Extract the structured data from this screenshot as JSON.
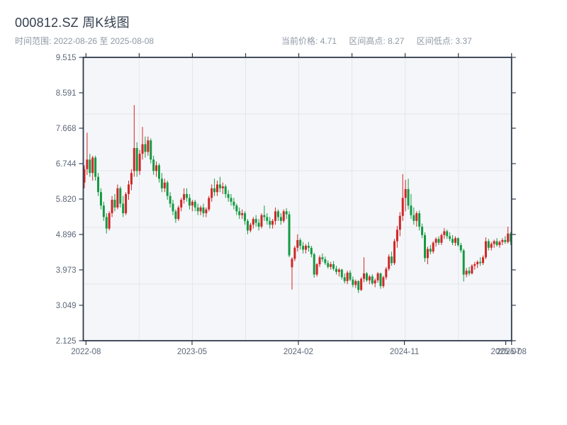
{
  "header": {
    "title": "000812.SZ 周K线图",
    "date_range_label": "时间范围: 2022-08-26 至 2025-08-08",
    "stats": [
      {
        "label": "当前价格:",
        "value": "4.71"
      },
      {
        "label": "区间高点:",
        "value": "8.27"
      },
      {
        "label": "区间低点:",
        "value": "3.37"
      }
    ]
  },
  "chart_data": {
    "type": "candlestick",
    "title": "000812.SZ 周K线图",
    "frequency": "weekly",
    "date_start": "2022-08-26",
    "date_end": "2025-08-08",
    "current_price": 4.71,
    "range_high": 8.27,
    "range_low": 3.37,
    "up_color": "#d02626",
    "down_color": "#149a43",
    "grid": true,
    "legend": false,
    "y_range": [
      2.125,
      9.515
    ],
    "y_tick_labels": [
      "9.515",
      "8.591",
      "7.668",
      "6.744",
      "5.820",
      "4.896",
      "3.973",
      "3.049",
      "2.125"
    ],
    "x_ticks": [
      {
        "label": "2022-08",
        "i": 0.6
      },
      {
        "label": "2023-05",
        "i": 38.9
      },
      {
        "label": "2024-02",
        "i": 77.3
      },
      {
        "label": "2024-11",
        "i": 115.6
      },
      {
        "label": "2025-07",
        "i": 152.2
      },
      {
        "label": "2025-08",
        "i": 154.3
      }
    ],
    "candle_count": 155,
    "ohlc_note": "weekly candles [open, high, low, close]; red = up, green = down",
    "candles": [
      [
        6.25,
        6.7,
        6.1,
        6.6
      ],
      [
        6.6,
        7.55,
        6.45,
        6.85
      ],
      [
        6.85,
        7.0,
        6.4,
        6.5
      ],
      [
        6.5,
        6.95,
        6.3,
        6.9
      ],
      [
        6.9,
        6.95,
        6.3,
        6.4
      ],
      [
        6.4,
        6.5,
        5.9,
        6.0
      ],
      [
        6.0,
        6.1,
        5.55,
        5.65
      ],
      [
        5.65,
        5.75,
        5.25,
        5.35
      ],
      [
        5.35,
        5.45,
        4.92,
        5.05
      ],
      [
        5.05,
        5.5,
        5.0,
        5.45
      ],
      [
        5.45,
        5.9,
        5.35,
        5.8
      ],
      [
        5.8,
        5.95,
        5.5,
        5.6
      ],
      [
        5.6,
        6.2,
        5.55,
        6.1
      ],
      [
        6.1,
        6.15,
        5.6,
        5.7
      ],
      [
        5.7,
        5.9,
        5.35,
        5.45
      ],
      [
        5.45,
        6.0,
        5.4,
        5.95
      ],
      [
        5.95,
        6.3,
        5.8,
        6.2
      ],
      [
        6.2,
        6.6,
        6.05,
        6.5
      ],
      [
        6.55,
        8.27,
        6.4,
        7.15
      ],
      [
        7.15,
        7.3,
        6.4,
        6.55
      ],
      [
        6.55,
        7.1,
        6.45,
        7.0
      ],
      [
        7.0,
        7.7,
        6.85,
        7.25
      ],
      [
        7.25,
        7.45,
        6.9,
        7.05
      ],
      [
        7.05,
        7.45,
        6.95,
        7.35
      ],
      [
        7.35,
        7.4,
        6.75,
        6.85
      ],
      [
        6.85,
        6.95,
        6.45,
        6.55
      ],
      [
        6.55,
        6.8,
        6.4,
        6.7
      ],
      [
        6.7,
        6.75,
        6.25,
        6.35
      ],
      [
        6.35,
        6.5,
        6.0,
        6.1
      ],
      [
        6.1,
        6.35,
        6.0,
        6.25
      ],
      [
        6.25,
        6.3,
        5.8,
        5.9
      ],
      [
        5.9,
        6.0,
        5.6,
        5.7
      ],
      [
        5.7,
        5.8,
        5.4,
        5.5
      ],
      [
        5.5,
        5.55,
        5.2,
        5.3
      ],
      [
        5.3,
        5.65,
        5.25,
        5.6
      ],
      [
        5.6,
        5.85,
        5.5,
        5.8
      ],
      [
        5.8,
        6.1,
        5.7,
        5.95
      ],
      [
        5.95,
        6.1,
        5.75,
        5.85
      ],
      [
        5.85,
        5.95,
        5.55,
        5.65
      ],
      [
        5.65,
        5.8,
        5.5,
        5.75
      ],
      [
        5.75,
        5.8,
        5.5,
        5.6
      ],
      [
        5.6,
        5.7,
        5.4,
        5.5
      ],
      [
        5.5,
        5.65,
        5.4,
        5.6
      ],
      [
        5.6,
        5.7,
        5.35,
        5.45
      ],
      [
        5.45,
        5.6,
        5.35,
        5.55
      ],
      [
        5.55,
        5.9,
        5.5,
        5.85
      ],
      [
        5.85,
        6.2,
        5.75,
        6.1
      ],
      [
        6.1,
        6.35,
        5.9,
        6.0
      ],
      [
        6.0,
        6.3,
        5.9,
        6.2
      ],
      [
        6.2,
        6.4,
        6.0,
        6.1
      ],
      [
        6.1,
        6.25,
        5.95,
        6.15
      ],
      [
        6.15,
        6.2,
        5.85,
        5.95
      ],
      [
        5.95,
        6.05,
        5.75,
        5.85
      ],
      [
        5.85,
        5.95,
        5.65,
        5.75
      ],
      [
        5.75,
        5.85,
        5.55,
        5.65
      ],
      [
        5.65,
        5.7,
        5.4,
        5.5
      ],
      [
        5.5,
        5.6,
        5.3,
        5.4
      ],
      [
        5.4,
        5.55,
        5.3,
        5.45
      ],
      [
        5.45,
        5.5,
        5.15,
        5.25
      ],
      [
        5.25,
        5.3,
        4.9,
        5.0
      ],
      [
        5.0,
        5.2,
        4.95,
        5.15
      ],
      [
        5.15,
        5.35,
        5.05,
        5.3
      ],
      [
        5.3,
        5.4,
        5.1,
        5.2
      ],
      [
        5.2,
        5.3,
        5.0,
        5.1
      ],
      [
        5.1,
        5.45,
        5.05,
        5.4
      ],
      [
        5.4,
        5.65,
        5.25,
        5.35
      ],
      [
        5.35,
        5.45,
        5.15,
        5.25
      ],
      [
        5.25,
        5.35,
        5.05,
        5.15
      ],
      [
        5.15,
        5.3,
        5.05,
        5.25
      ],
      [
        5.25,
        5.6,
        5.15,
        5.5
      ],
      [
        5.5,
        5.55,
        5.25,
        5.35
      ],
      [
        5.35,
        5.45,
        5.15,
        5.25
      ],
      [
        5.25,
        5.55,
        5.2,
        5.5
      ],
      [
        5.5,
        5.58,
        5.3,
        5.42
      ],
      [
        5.42,
        5.5,
        4.3,
        4.35
      ],
      [
        4.04,
        4.3,
        3.46,
        4.26
      ],
      [
        4.26,
        4.6,
        4.2,
        4.55
      ],
      [
        4.55,
        4.9,
        4.45,
        4.75
      ],
      [
        4.75,
        4.8,
        4.5,
        4.6
      ],
      [
        4.6,
        4.7,
        4.4,
        4.5
      ],
      [
        4.5,
        4.65,
        4.4,
        4.6
      ],
      [
        4.6,
        4.7,
        4.45,
        4.55
      ],
      [
        4.55,
        4.6,
        4.3,
        4.38
      ],
      [
        4.38,
        4.42,
        3.77,
        3.85
      ],
      [
        3.85,
        4.15,
        3.8,
        4.12
      ],
      [
        4.12,
        4.35,
        4.05,
        4.3
      ],
      [
        4.3,
        4.4,
        4.18,
        4.25
      ],
      [
        4.25,
        4.32,
        4.1,
        4.15
      ],
      [
        4.15,
        4.22,
        4.0,
        4.05
      ],
      [
        4.05,
        4.18,
        3.98,
        4.12
      ],
      [
        4.12,
        4.2,
        3.95,
        4.0
      ],
      [
        4.0,
        4.08,
        3.85,
        3.92
      ],
      [
        3.92,
        4.02,
        3.8,
        3.98
      ],
      [
        3.98,
        4.0,
        3.72,
        3.78
      ],
      [
        3.78,
        3.88,
        3.62,
        3.68
      ],
      [
        3.68,
        3.95,
        3.6,
        3.9
      ],
      [
        3.9,
        3.96,
        3.68,
        3.72
      ],
      [
        3.72,
        3.8,
        3.52,
        3.58
      ],
      [
        3.58,
        3.72,
        3.5,
        3.68
      ],
      [
        3.68,
        3.7,
        3.37,
        3.45
      ],
      [
        3.45,
        3.78,
        3.42,
        3.74
      ],
      [
        3.74,
        4.3,
        3.65,
        3.88
      ],
      [
        3.88,
        3.92,
        3.66,
        3.7
      ],
      [
        3.7,
        3.84,
        3.6,
        3.8
      ],
      [
        3.8,
        3.86,
        3.58,
        3.62
      ],
      [
        3.62,
        3.75,
        3.52,
        3.7
      ],
      [
        3.7,
        3.92,
        3.64,
        3.88
      ],
      [
        3.88,
        3.9,
        3.48,
        3.55
      ],
      [
        3.55,
        3.82,
        3.5,
        3.78
      ],
      [
        3.78,
        4.05,
        3.72,
        4.0
      ],
      [
        4.0,
        4.38,
        3.95,
        4.32
      ],
      [
        4.32,
        4.45,
        4.08,
        4.15
      ],
      [
        4.15,
        4.78,
        4.1,
        4.72
      ],
      [
        4.72,
        5.12,
        4.55,
        5.02
      ],
      [
        5.02,
        5.48,
        4.85,
        5.38
      ],
      [
        5.38,
        6.47,
        5.25,
        5.85
      ],
      [
        5.85,
        6.32,
        5.5,
        6.08
      ],
      [
        6.08,
        6.35,
        5.55,
        5.65
      ],
      [
        5.65,
        5.95,
        5.3,
        5.4
      ],
      [
        5.4,
        5.6,
        5.15,
        5.25
      ],
      [
        5.25,
        5.5,
        5.1,
        5.45
      ],
      [
        5.45,
        5.52,
        5.0,
        5.1
      ],
      [
        5.1,
        5.18,
        4.8,
        4.88
      ],
      [
        4.88,
        4.95,
        4.18,
        4.28
      ],
      [
        4.28,
        4.58,
        4.12,
        4.52
      ],
      [
        4.52,
        4.62,
        4.38,
        4.45
      ],
      [
        4.45,
        4.72,
        4.4,
        4.68
      ],
      [
        4.68,
        4.82,
        4.58,
        4.78
      ],
      [
        4.78,
        4.85,
        4.62,
        4.68
      ],
      [
        4.68,
        4.92,
        4.62,
        4.88
      ],
      [
        4.88,
        5.06,
        4.78,
        4.98
      ],
      [
        4.98,
        5.02,
        4.78,
        4.85
      ],
      [
        4.85,
        4.95,
        4.72,
        4.78
      ],
      [
        4.78,
        4.88,
        4.62,
        4.68
      ],
      [
        4.68,
        4.85,
        4.6,
        4.8
      ],
      [
        4.8,
        4.82,
        4.58,
        4.62
      ],
      [
        4.62,
        4.68,
        4.42,
        4.48
      ],
      [
        4.48,
        4.52,
        3.67,
        3.85
      ],
      [
        3.85,
        4.02,
        3.78,
        3.95
      ],
      [
        3.95,
        4.05,
        3.82,
        3.88
      ],
      [
        3.88,
        4.12,
        3.85,
        4.08
      ],
      [
        4.08,
        4.18,
        3.98,
        4.12
      ],
      [
        4.12,
        4.22,
        4.02,
        4.18
      ],
      [
        4.18,
        4.3,
        4.08,
        4.15
      ],
      [
        4.15,
        4.35,
        4.1,
        4.3
      ],
      [
        4.3,
        4.82,
        4.25,
        4.72
      ],
      [
        4.72,
        4.78,
        4.48,
        4.55
      ],
      [
        4.55,
        4.7,
        4.48,
        4.65
      ],
      [
        4.65,
        4.76,
        4.55,
        4.72
      ],
      [
        4.72,
        4.8,
        4.58,
        4.62
      ],
      [
        4.62,
        4.74,
        4.55,
        4.7
      ],
      [
        4.7,
        4.8,
        4.62,
        4.75
      ],
      [
        4.75,
        4.85,
        4.65,
        4.7
      ],
      [
        4.7,
        5.1,
        4.66,
        4.92
      ],
      [
        4.92,
        4.96,
        4.62,
        4.71
      ]
    ]
  },
  "style": {
    "plot_bg": "#f5f6f9",
    "grid_color": "#e3e6ea",
    "spine_color": "#2e3a4c",
    "tick_label_color": "#5d6878"
  }
}
